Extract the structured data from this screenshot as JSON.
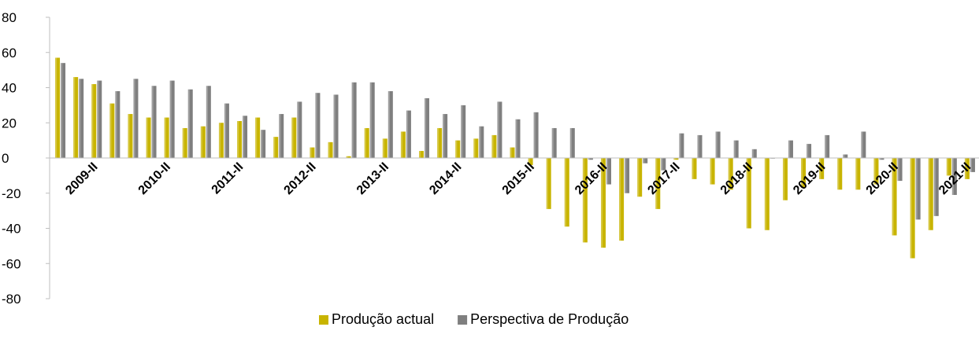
{
  "chart_data": {
    "type": "bar",
    "ylim": [
      -80,
      80
    ],
    "yticks": [
      -80,
      -60,
      -40,
      -20,
      0,
      20,
      40,
      60,
      80
    ],
    "x_tick_labels": [
      "2009-II",
      "2010-II",
      "2011-II",
      "2012-II",
      "2013-II",
      "2014-II",
      "2015-II",
      "2016-II",
      "2017-II",
      "2018-II",
      "2019-II",
      "2020-II",
      "2021-II"
    ],
    "legend_position": "bottom",
    "grid": false,
    "series": [
      {
        "name": "Produção actual",
        "color": "#c8b400",
        "values": [
          57,
          46,
          42,
          31,
          25,
          23,
          23,
          17,
          18,
          20,
          21,
          23,
          12,
          23,
          6,
          9,
          1,
          17,
          11,
          15,
          4,
          17,
          10,
          11,
          13,
          6,
          -4,
          -29,
          -39,
          -48,
          -51,
          -47,
          -22,
          -29,
          -1,
          -12,
          -15,
          -18,
          -40,
          -41,
          -24,
          -17,
          -12,
          -18,
          -18,
          -15,
          -44,
          -57,
          -41,
          -10,
          -12
        ]
      },
      {
        "name": "Perspectiva de Produção",
        "color": "#7f7f7f",
        "values": [
          54,
          45,
          44,
          38,
          45,
          41,
          44,
          39,
          41,
          31,
          24,
          16,
          25,
          32,
          37,
          36,
          43,
          43,
          38,
          27,
          34,
          25,
          30,
          18,
          32,
          22,
          26,
          17,
          17,
          -1,
          -15,
          -20,
          -3,
          -7,
          14,
          13,
          15,
          10,
          5,
          0,
          10,
          8,
          13,
          2,
          15,
          -1,
          -13,
          -35,
          -33,
          -21,
          -8
        ]
      }
    ]
  }
}
